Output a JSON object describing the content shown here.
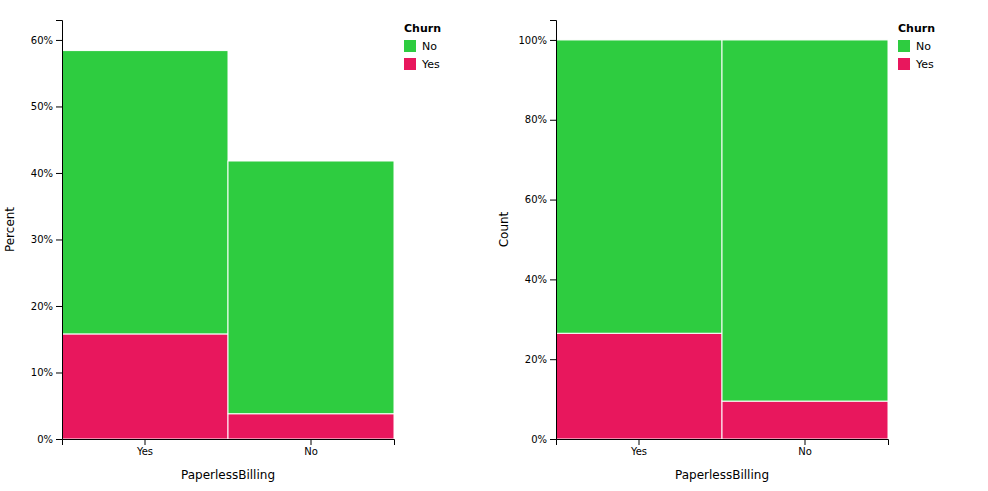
{
  "chart_data": [
    {
      "type": "bar",
      "stacked": true,
      "categories": [
        "Yes",
        "No"
      ],
      "series": [
        {
          "name": "Yes",
          "color": "#E8175D",
          "values": [
            15.8,
            3.8
          ]
        },
        {
          "name": "No",
          "color": "#2ECC40",
          "values": [
            42.6,
            38.0
          ]
        }
      ],
      "xlabel": "PaperlessBilling",
      "ylabel": "Percent",
      "ylim": [
        0,
        63
      ],
      "yticks": [
        {
          "value": 0,
          "label": "0%"
        },
        {
          "value": 10,
          "label": "10%"
        },
        {
          "value": 20,
          "label": "20%"
        },
        {
          "value": 30,
          "label": "30%"
        },
        {
          "value": 40,
          "label": "40%"
        },
        {
          "value": 50,
          "label": "50%"
        },
        {
          "value": 60,
          "label": "60%"
        }
      ],
      "legend": "upper right",
      "legend_title": "Churn",
      "grid": false
    },
    {
      "type": "bar",
      "stacked": true,
      "categories": [
        "Yes",
        "No"
      ],
      "series": [
        {
          "name": "Yes",
          "color": "#E8175D",
          "values": [
            26.5,
            9.5
          ]
        },
        {
          "name": "No",
          "color": "#2ECC40",
          "values": [
            73.5,
            90.5
          ]
        }
      ],
      "xlabel": "PaperlessBilling",
      "ylabel": "Count",
      "ylim": [
        0,
        105
      ],
      "yticks": [
        {
          "value": 0,
          "label": "0%"
        },
        {
          "value": 20,
          "label": "20%"
        },
        {
          "value": 40,
          "label": "40%"
        },
        {
          "value": 60,
          "label": "60%"
        },
        {
          "value": 80,
          "label": "80%"
        },
        {
          "value": 100,
          "label": "100%"
        }
      ],
      "legend": "upper right",
      "legend_title": "Churn",
      "grid": false
    }
  ]
}
